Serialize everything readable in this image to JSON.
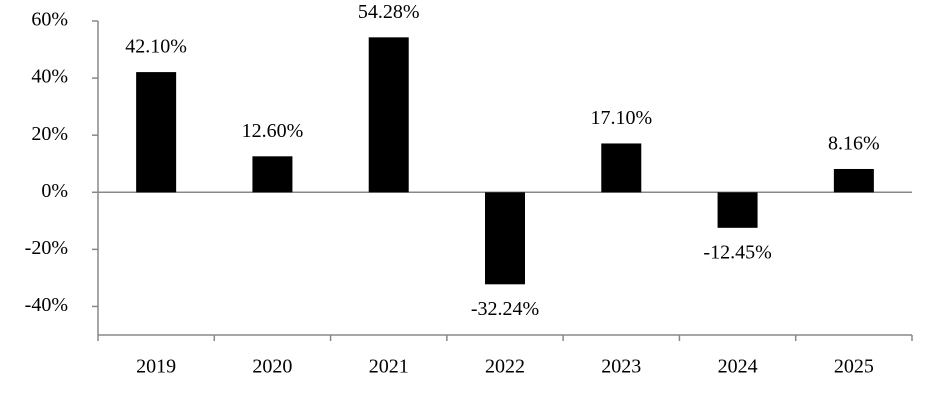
{
  "chart_data": {
    "type": "bar",
    "categories": [
      "2019",
      "2020",
      "2021",
      "2022",
      "2023",
      "2024",
      "2025"
    ],
    "values": [
      42.1,
      12.6,
      54.28,
      -32.24,
      17.1,
      -12.45,
      8.16
    ],
    "value_labels": [
      "42.10%",
      "12.60%",
      "54.28%",
      "-32.24%",
      "17.10%",
      "-12.45%",
      "8.16%"
    ],
    "color": "#000000",
    "ylim": [
      -50,
      60
    ],
    "yticks": [
      {
        "value": -40,
        "label": "-40%"
      },
      {
        "value": -20,
        "label": "-20%"
      },
      {
        "value": 0,
        "label": "0%"
      },
      {
        "value": 20,
        "label": "20%"
      },
      {
        "value": 40,
        "label": "40%"
      },
      {
        "value": 60,
        "label": "60%"
      }
    ],
    "grid": false
  }
}
